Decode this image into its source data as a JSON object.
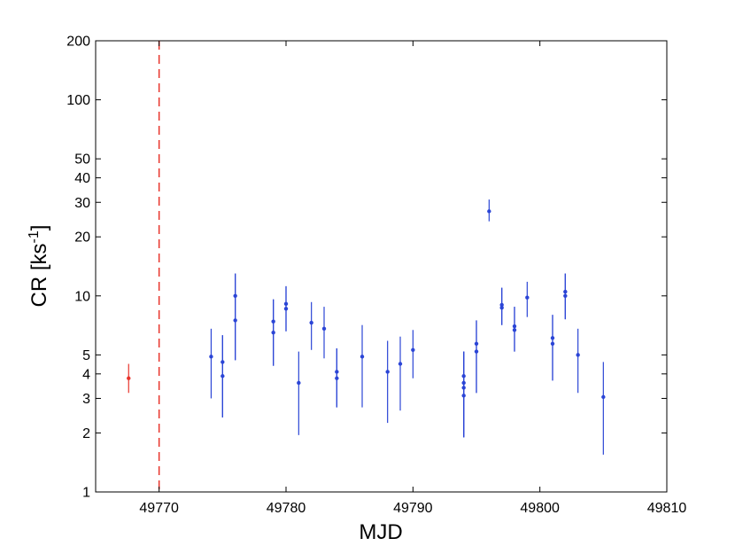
{
  "chart_data": {
    "type": "scatter",
    "title": "",
    "xlabel": "MJD",
    "ylabel": "CR [ks",
    "ylabel_sup": "-1",
    "ylabel_end": "]",
    "xlim": [
      49765,
      49810
    ],
    "ylim": [
      1,
      200
    ],
    "yscale": "log",
    "grid": false,
    "legend": "none",
    "xticks": [
      49770,
      49780,
      49790,
      49800,
      49810
    ],
    "xtick_labels": [
      "49770",
      "49780",
      "49790",
      "49800",
      "49810"
    ],
    "yticks": [
      1,
      2,
      3,
      4,
      5,
      10,
      20,
      30,
      40,
      50,
      100,
      200
    ],
    "ytick_labels": [
      "1",
      "2",
      "3",
      "4",
      "5",
      "10",
      "20",
      "30",
      "40",
      "50",
      "100",
      "200"
    ],
    "vline": {
      "x": 49770,
      "color": "#e8342c",
      "style": "dashed"
    },
    "series": [
      {
        "color": "#e8342c",
        "points": [
          {
            "x": 49767.6,
            "y": 3.8,
            "low": 3.2,
            "high": 4.5
          }
        ]
      },
      {
        "color": "#2b45d6",
        "points": [
          {
            "x": 49774.1,
            "y": 4.9,
            "low": 3.0,
            "high": 6.8
          },
          {
            "x": 49775.0,
            "y": 4.6,
            "low": 2.4,
            "high": 6.3
          },
          {
            "x": 49775.0,
            "y": 3.9,
            "low": 2.4,
            "high": 6.3
          },
          {
            "x": 49776.0,
            "y": 10.0,
            "low": 4.7,
            "high": 13.0
          },
          {
            "x": 49776.0,
            "y": 7.5,
            "low": 4.7,
            "high": 13.0
          },
          {
            "x": 49779.0,
            "y": 7.4,
            "low": 4.4,
            "high": 9.6
          },
          {
            "x": 49779.0,
            "y": 6.5,
            "low": 4.4,
            "high": 9.6
          },
          {
            "x": 49780.0,
            "y": 9.1,
            "low": 6.6,
            "high": 11.2
          },
          {
            "x": 49780.0,
            "y": 8.6,
            "low": 6.6,
            "high": 11.2
          },
          {
            "x": 49781.0,
            "y": 3.6,
            "low": 1.95,
            "high": 5.2
          },
          {
            "x": 49782.0,
            "y": 7.3,
            "low": 5.3,
            "high": 9.3
          },
          {
            "x": 49783.0,
            "y": 6.8,
            "low": 4.8,
            "high": 8.8
          },
          {
            "x": 49784.0,
            "y": 4.1,
            "low": 2.7,
            "high": 5.4
          },
          {
            "x": 49784.0,
            "y": 3.8,
            "low": 2.7,
            "high": 5.4
          },
          {
            "x": 49786.0,
            "y": 4.9,
            "low": 2.7,
            "high": 7.1
          },
          {
            "x": 49788.0,
            "y": 4.1,
            "low": 2.25,
            "high": 5.9
          },
          {
            "x": 49789.0,
            "y": 4.5,
            "low": 2.6,
            "high": 6.2
          },
          {
            "x": 49790.0,
            "y": 5.3,
            "low": 3.8,
            "high": 6.7
          },
          {
            "x": 49794.0,
            "y": 3.9,
            "low": 1.9,
            "high": 5.2
          },
          {
            "x": 49794.0,
            "y": 3.6,
            "low": 1.9,
            "high": 5.2
          },
          {
            "x": 49794.0,
            "y": 3.4,
            "low": 1.9,
            "high": 5.2
          },
          {
            "x": 49794.0,
            "y": 3.1,
            "low": 1.9,
            "high": 5.2
          },
          {
            "x": 49795.0,
            "y": 5.7,
            "low": 3.2,
            "high": 7.5
          },
          {
            "x": 49795.0,
            "y": 5.2,
            "low": 3.2,
            "high": 7.5
          },
          {
            "x": 49796.0,
            "y": 27.0,
            "low": 24.0,
            "high": 31.0
          },
          {
            "x": 49797.0,
            "y": 9.0,
            "low": 7.1,
            "high": 11.0
          },
          {
            "x": 49797.0,
            "y": 8.7,
            "low": 7.1,
            "high": 11.0
          },
          {
            "x": 49798.0,
            "y": 7.0,
            "low": 5.2,
            "high": 8.8
          },
          {
            "x": 49798.0,
            "y": 6.7,
            "low": 5.2,
            "high": 8.8
          },
          {
            "x": 49799.0,
            "y": 9.8,
            "low": 7.8,
            "high": 11.8
          },
          {
            "x": 49801.0,
            "y": 6.1,
            "low": 3.7,
            "high": 8.0
          },
          {
            "x": 49801.0,
            "y": 5.7,
            "low": 3.7,
            "high": 8.0
          },
          {
            "x": 49802.0,
            "y": 10.5,
            "low": 7.6,
            "high": 13.0
          },
          {
            "x": 49802.0,
            "y": 10.0,
            "low": 7.6,
            "high": 13.0
          },
          {
            "x": 49803.0,
            "y": 5.0,
            "low": 3.2,
            "high": 6.8
          },
          {
            "x": 49805.0,
            "y": 3.05,
            "low": 1.55,
            "high": 4.6
          }
        ]
      }
    ]
  }
}
